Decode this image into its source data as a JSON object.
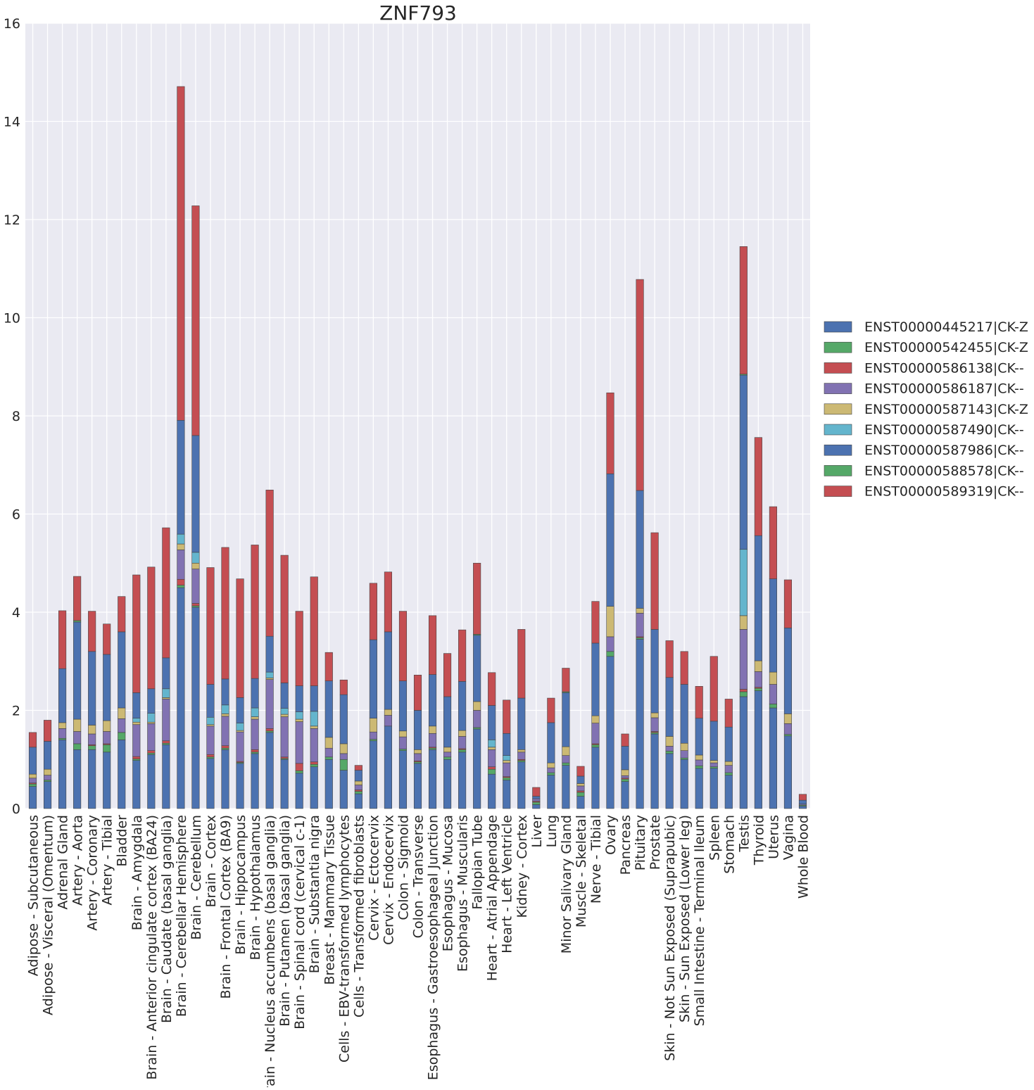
{
  "chart_data": {
    "type": "bar",
    "stacked": true,
    "title": "ZNF793",
    "xlabel": "",
    "ylabel": "",
    "ylim": [
      0,
      16
    ],
    "yticks": [
      0,
      2,
      4,
      6,
      8,
      10,
      12,
      14,
      16
    ],
    "grid": true,
    "legend_position": "right",
    "categories": [
      "Adipose - Subcutaneous",
      "Adipose - Visceral (Omentum)",
      "Adrenal Gland",
      "Artery - Aorta",
      "Artery - Coronary",
      "Artery - Tibial",
      "Bladder",
      "Brain - Amygdala",
      "Brain - Anterior cingulate cortex (BA24)",
      "Brain - Caudate (basal ganglia)",
      "Brain - Cerebellar Hemisphere",
      "Brain - Cerebellum",
      "Brain - Cortex",
      "Brain - Frontal Cortex (BA9)",
      "Brain - Hippocampus",
      "Brain - Hypothalamus",
      "Brain - Nucleus accumbens (basal ganglia)",
      "Brain - Putamen (basal ganglia)",
      "Brain - Spinal cord (cervical c-1)",
      "Brain - Substantia nigra",
      "Breast - Mammary Tissue",
      "Cells - EBV-transformed lymphocytes",
      "Cells - Transformed fibroblasts",
      "Cervix - Ectocervix",
      "Cervix - Endocervix",
      "Colon - Sigmoid",
      "Colon - Transverse",
      "Esophagus - Gastroesophageal Junction",
      "Esophagus - Mucosa",
      "Esophagus - Muscularis",
      "Fallopian Tube",
      "Heart - Atrial Appendage",
      "Heart - Left Ventricle",
      "Kidney - Cortex",
      "Liver",
      "Lung",
      "Minor Salivary Gland",
      "Muscle - Skeletal",
      "Nerve - Tibial",
      "Ovary",
      "Pancreas",
      "Pituitary",
      "Prostate",
      "Skin - Not Sun Exposed (Suprapubic)",
      "Skin - Sun Exposed (Lower leg)",
      "Small Intestine - Terminal Ileum",
      "Spleen",
      "Stomach",
      "Testis",
      "Thyroid",
      "Uterus",
      "Vagina",
      "Whole Blood"
    ],
    "series": [
      {
        "name": "ENST00000445217|CK-Z",
        "color": "#4c72b0",
        "values": [
          0.45,
          0.55,
          1.4,
          1.2,
          1.2,
          1.15,
          1.4,
          0.98,
          1.1,
          1.3,
          4.5,
          4.1,
          1.02,
          1.2,
          0.92,
          1.12,
          1.55,
          1.0,
          0.72,
          0.85,
          1.0,
          0.78,
          0.3,
          1.38,
          1.68,
          1.18,
          0.92,
          1.2,
          1.0,
          1.15,
          1.62,
          0.7,
          0.58,
          0.95,
          0.08,
          0.68,
          0.88,
          0.25,
          1.25,
          3.1,
          0.55,
          3.45,
          1.52,
          1.12,
          1.0,
          0.82,
          0.82,
          0.68,
          2.28,
          2.4,
          2.05,
          1.48,
          0.05
        ]
      },
      {
        "name": "ENST00000542455|CK-Z",
        "color": "#55a868",
        "values": [
          0.05,
          0.03,
          0.03,
          0.12,
          0.08,
          0.15,
          0.15,
          0.03,
          0.03,
          0.03,
          0.05,
          0.03,
          0.03,
          0.03,
          0.02,
          0.03,
          0.03,
          0.02,
          0.05,
          0.05,
          0.05,
          0.22,
          0.05,
          0.03,
          0.0,
          0.03,
          0.03,
          0.03,
          0.05,
          0.05,
          0.03,
          0.1,
          0.05,
          0.03,
          0.05,
          0.05,
          0.05,
          0.08,
          0.05,
          0.1,
          0.05,
          0.03,
          0.03,
          0.05,
          0.03,
          0.05,
          0.03,
          0.05,
          0.1,
          0.05,
          0.08,
          0.03,
          0.02
        ]
      },
      {
        "name": "ENST00000586138|CK--",
        "color": "#c44e52",
        "values": [
          0.02,
          0.0,
          0.0,
          0.0,
          0.02,
          0.02,
          0.0,
          0.05,
          0.05,
          0.05,
          0.12,
          0.05,
          0.05,
          0.05,
          0.02,
          0.05,
          0.05,
          0.03,
          0.15,
          0.05,
          0.0,
          0.0,
          0.03,
          0.0,
          0.0,
          0.0,
          0.02,
          0.02,
          0.0,
          0.02,
          0.0,
          0.05,
          0.02,
          0.02,
          0.02,
          0.0,
          0.0,
          0.03,
          0.02,
          0.0,
          0.02,
          0.02,
          0.02,
          0.0,
          0.0,
          0.0,
          0.0,
          0.0,
          0.05,
          0.02,
          0.0,
          0.0,
          0.0
        ]
      },
      {
        "name": "ENST00000586187|CK--",
        "color": "#8172b2",
        "values": [
          0.1,
          0.1,
          0.2,
          0.25,
          0.22,
          0.25,
          0.28,
          0.65,
          0.55,
          0.85,
          0.6,
          0.7,
          0.58,
          0.6,
          0.6,
          0.62,
          1.0,
          0.82,
          0.85,
          0.68,
          0.18,
          0.12,
          0.1,
          0.15,
          0.22,
          0.25,
          0.15,
          0.28,
          0.1,
          0.25,
          0.35,
          0.35,
          0.28,
          0.15,
          0.05,
          0.1,
          0.15,
          0.1,
          0.42,
          0.3,
          0.05,
          0.48,
          0.28,
          0.1,
          0.15,
          0.12,
          0.08,
          0.15,
          1.22,
          0.32,
          0.4,
          0.22,
          0.02
        ]
      },
      {
        "name": "ENST00000587143|CK-Z",
        "color": "#ccb974",
        "values": [
          0.08,
          0.12,
          0.12,
          0.25,
          0.18,
          0.22,
          0.22,
          0.05,
          0.03,
          0.03,
          0.12,
          0.12,
          0.03,
          0.05,
          0.03,
          0.05,
          0.03,
          0.05,
          0.05,
          0.05,
          0.22,
          0.2,
          0.08,
          0.28,
          0.12,
          0.12,
          0.08,
          0.15,
          0.1,
          0.12,
          0.18,
          0.05,
          0.05,
          0.05,
          0.0,
          0.1,
          0.18,
          0.05,
          0.15,
          0.62,
          0.12,
          0.1,
          0.1,
          0.2,
          0.15,
          0.1,
          0.05,
          0.08,
          0.28,
          0.22,
          0.25,
          0.2,
          0.0
        ]
      },
      {
        "name": "ENST00000587490|CK--",
        "color": "#64b5cd",
        "values": [
          0.0,
          0.0,
          0.0,
          0.0,
          0.0,
          0.0,
          0.0,
          0.08,
          0.18,
          0.18,
          0.2,
          0.22,
          0.15,
          0.18,
          0.15,
          0.18,
          0.12,
          0.12,
          0.15,
          0.3,
          0.0,
          0.0,
          0.0,
          0.0,
          0.0,
          0.0,
          0.0,
          0.0,
          0.0,
          0.0,
          0.0,
          0.15,
          0.1,
          0.0,
          0.0,
          0.0,
          0.0,
          0.0,
          0.0,
          0.0,
          0.0,
          0.0,
          0.0,
          0.0,
          0.0,
          0.0,
          0.0,
          0.0,
          1.35,
          0.0,
          0.0,
          0.0,
          0.0
        ]
      },
      {
        "name": "ENST00000587986|CK--",
        "color": "#4c72b0",
        "values": [
          0.55,
          0.57,
          1.1,
          1.98,
          1.5,
          1.35,
          1.55,
          0.52,
          0.5,
          0.63,
          2.32,
          2.38,
          0.67,
          0.53,
          0.52,
          0.6,
          0.73,
          0.52,
          0.53,
          0.52,
          1.15,
          1.0,
          0.22,
          1.6,
          1.58,
          1.02,
          0.8,
          1.05,
          1.03,
          1.0,
          1.35,
          0.7,
          0.45,
          1.05,
          0.05,
          0.82,
          1.1,
          0.15,
          1.48,
          2.7,
          0.48,
          2.4,
          1.7,
          1.2,
          1.2,
          0.75,
          0.8,
          0.7,
          3.55,
          2.55,
          1.9,
          1.75,
          0.08
        ]
      },
      {
        "name": "ENST00000588578|CK--",
        "color": "#55a868",
        "values": [
          0.0,
          0.0,
          0.0,
          0.03,
          0.0,
          0.0,
          0.0,
          0.0,
          0.0,
          0.0,
          0.0,
          0.0,
          0.0,
          0.0,
          0.0,
          0.0,
          0.0,
          0.0,
          0.0,
          0.0,
          0.0,
          0.0,
          0.0,
          0.0,
          0.0,
          0.0,
          0.0,
          0.0,
          0.0,
          0.0,
          0.02,
          0.0,
          0.0,
          0.0,
          0.0,
          0.0,
          0.02,
          0.0,
          0.0,
          0.0,
          0.0,
          0.0,
          0.0,
          0.0,
          0.0,
          0.0,
          0.0,
          0.0,
          0.02,
          0.0,
          0.0,
          0.0,
          0.0
        ]
      },
      {
        "name": "ENST00000589319|CK--",
        "color": "#c44e52",
        "values": [
          0.3,
          0.43,
          1.18,
          0.9,
          0.82,
          0.62,
          0.72,
          2.4,
          2.48,
          2.65,
          6.8,
          4.68,
          2.38,
          2.68,
          2.42,
          2.72,
          2.98,
          2.6,
          1.52,
          2.22,
          0.58,
          0.3,
          0.1,
          1.15,
          1.22,
          1.42,
          0.72,
          1.2,
          0.88,
          1.05,
          1.45,
          0.67,
          0.68,
          1.4,
          0.18,
          0.5,
          0.48,
          0.2,
          0.85,
          1.65,
          0.25,
          4.3,
          1.97,
          0.75,
          0.67,
          0.65,
          1.32,
          0.57,
          2.6,
          2.0,
          1.47,
          0.98,
          0.12
        ]
      }
    ]
  }
}
